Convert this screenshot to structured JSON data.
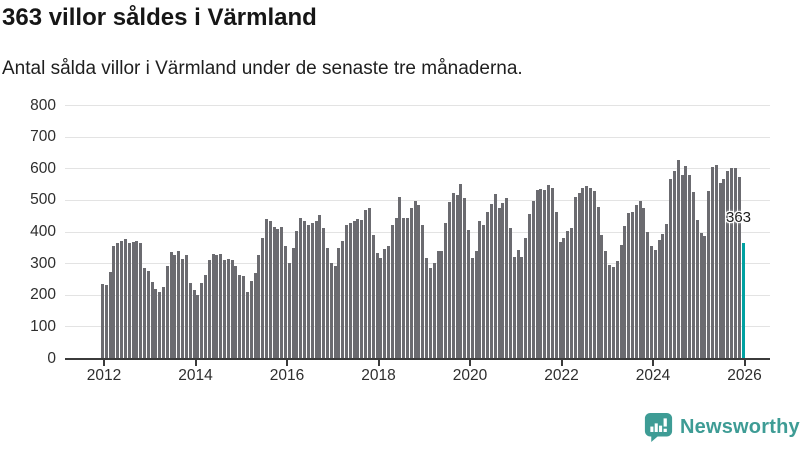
{
  "header": {
    "title": "363 villor såldes i Värmland",
    "subtitle": "Antal sålda villor i Värmland under de senaste tre månaderna."
  },
  "footer": {
    "brand": "Newsworthy",
    "brand_color": "#3e9c95",
    "logo_icon": "newsworthy-speech-bubble-bar-chart-icon"
  },
  "chart_data": {
    "type": "bar",
    "title": "363 villor såldes i Värmland",
    "subtitle": "Antal sålda villor i Värmland under de senaste tre månaderna.",
    "xlabel": "",
    "ylabel": "",
    "ylim": [
      0,
      800
    ],
    "yticks": [
      0,
      100,
      200,
      300,
      400,
      500,
      600,
      700,
      800
    ],
    "xticks": [
      "2012",
      "2014",
      "2016",
      "2018",
      "2020",
      "2022",
      "2024",
      "2026"
    ],
    "grid": true,
    "legend": "none",
    "bar_color": "#6b6b70",
    "highlight_color": "#00a1a1",
    "axis_color": "#3b3b3b",
    "series_start": "2011-12",
    "series_frequency": "monthly-rolling-3-month-sum",
    "values": [
      234,
      230,
      272,
      353,
      363,
      371,
      376,
      363,
      368,
      371,
      363,
      284,
      274,
      242,
      218,
      210,
      226,
      292,
      335,
      326,
      337,
      314,
      326,
      237,
      215,
      200,
      237,
      263,
      310,
      328,
      326,
      328,
      310,
      312,
      310,
      292,
      263,
      258,
      210,
      244,
      268,
      326,
      379,
      440,
      434,
      413,
      408,
      413,
      353,
      300,
      347,
      402,
      442,
      434,
      421,
      426,
      432,
      453,
      410,
      347,
      300,
      290,
      347,
      371,
      421,
      426,
      432,
      439,
      437,
      468,
      476,
      389,
      332,
      316,
      345,
      353,
      421,
      442,
      510,
      444,
      442,
      474,
      497,
      484,
      421,
      316,
      284,
      300,
      337,
      337,
      426,
      495,
      521,
      516,
      549,
      505,
      405,
      316,
      337,
      434,
      421,
      461,
      486,
      518,
      474,
      489,
      505,
      410,
      318,
      342,
      321,
      379,
      455,
      497,
      532,
      534,
      532,
      547,
      539,
      461,
      368,
      379,
      402,
      410,
      510,
      521,
      539,
      545,
      537,
      528,
      479,
      389,
      340,
      295,
      289,
      308,
      358,
      418,
      458,
      463,
      484,
      497,
      474,
      400,
      353,
      342,
      374,
      392,
      424,
      565,
      590,
      626,
      579,
      607,
      579,
      526,
      437,
      395,
      385,
      527,
      603,
      611,
      553,
      566,
      592,
      602,
      602,
      571,
      363
    ],
    "highlight": {
      "index": 168,
      "value": 363,
      "label": "363"
    }
  }
}
